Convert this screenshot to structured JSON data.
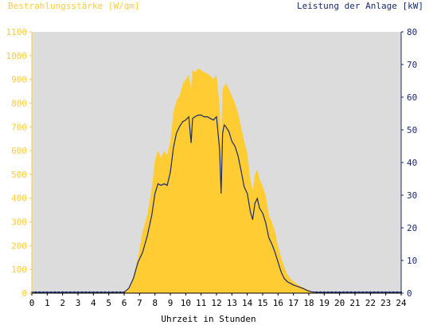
{
  "chart_data": {
    "type": "area",
    "title_left": "Bestrahlungsstärke [W/qm]",
    "title_right": "Leistung der Anlage [kW]",
    "xlabel": "Uhrzeit in Stunden",
    "xlim": [
      0,
      24
    ],
    "ylim_left": [
      0,
      1100
    ],
    "ylim_right": [
      0,
      80
    ],
    "x_ticks": [
      "0",
      "1",
      "2",
      "3",
      "4",
      "5",
      "6",
      "7",
      "8",
      "9",
      "10",
      "11",
      "12",
      "13",
      "14",
      "15",
      "16",
      "17",
      "18",
      "19",
      "20",
      "21",
      "22",
      "23",
      "24"
    ],
    "y_ticks_left": [
      "0",
      "100",
      "200",
      "300",
      "400",
      "500",
      "600",
      "700",
      "800",
      "900",
      "1000",
      "1100"
    ],
    "y_ticks_right": [
      "0",
      "10",
      "20",
      "30",
      "40",
      "50",
      "60",
      "70",
      "80"
    ],
    "grid": false,
    "colors": {
      "irradiance_fill": "#ffcc33",
      "power_line": "#1a2a6c",
      "plot_background": "#dcdcdc"
    },
    "series": [
      {
        "axis": "left",
        "style": "area",
        "x": [
          0,
          6.0,
          6.3,
          6.6,
          6.9,
          7.2,
          7.5,
          7.8,
          8.0,
          8.2,
          8.4,
          8.6,
          8.8,
          9.0,
          9.2,
          9.4,
          9.6,
          9.8,
          10.0,
          10.2,
          10.35,
          10.45,
          10.6,
          10.8,
          11.0,
          11.2,
          11.4,
          11.6,
          11.8,
          12.0,
          12.2,
          12.3,
          12.4,
          12.5,
          12.6,
          12.8,
          13.0,
          13.2,
          13.4,
          13.6,
          13.8,
          14.0,
          14.2,
          14.35,
          14.5,
          14.65,
          14.8,
          15.0,
          15.2,
          15.4,
          15.6,
          15.8,
          16.0,
          16.2,
          16.4,
          16.6,
          16.8,
          17.0,
          17.3,
          17.6,
          17.9,
          18.2,
          18.5,
          24
        ],
        "y": [
          0,
          5,
          20,
          70,
          150,
          260,
          330,
          440,
          560,
          600,
          570,
          600,
          580,
          640,
          760,
          810,
          830,
          880,
          900,
          920,
          860,
          940,
          930,
          945,
          940,
          930,
          925,
          915,
          900,
          920,
          790,
          640,
          860,
          870,
          885,
          860,
          830,
          800,
          760,
          700,
          640,
          590,
          480,
          430,
          500,
          520,
          480,
          450,
          410,
          330,
          300,
          260,
          200,
          150,
          110,
          80,
          60,
          50,
          35,
          25,
          15,
          8,
          2,
          0
        ]
      },
      {
        "axis": "right",
        "style": "line",
        "x": [
          0,
          6.0,
          6.3,
          6.6,
          6.9,
          7.2,
          7.5,
          7.8,
          8.0,
          8.2,
          8.4,
          8.6,
          8.8,
          9.0,
          9.2,
          9.4,
          9.6,
          9.8,
          10.0,
          10.2,
          10.35,
          10.45,
          10.6,
          10.8,
          11.0,
          11.2,
          11.4,
          11.6,
          11.8,
          12.0,
          12.2,
          12.3,
          12.4,
          12.5,
          12.6,
          12.8,
          13.0,
          13.2,
          13.4,
          13.6,
          13.8,
          14.0,
          14.2,
          14.35,
          14.5,
          14.65,
          14.8,
          15.0,
          15.2,
          15.4,
          15.6,
          15.8,
          16.0,
          16.2,
          16.4,
          16.6,
          16.8,
          17.0,
          17.3,
          17.6,
          17.9,
          18.2,
          18.5,
          24
        ],
        "y": [
          0.3,
          0.3,
          1.5,
          4.5,
          9.5,
          12.5,
          17.5,
          24.0,
          30.5,
          33.5,
          33.0,
          33.5,
          33.0,
          37.0,
          44.5,
          49.0,
          51.0,
          52.5,
          53.0,
          54.0,
          46.0,
          53.5,
          54.0,
          54.5,
          54.5,
          54.0,
          54.0,
          53.5,
          53.0,
          54.0,
          44.0,
          30.5,
          49.0,
          51.5,
          51.0,
          49.5,
          46.5,
          45.0,
          42.0,
          37.5,
          32.5,
          30.5,
          25.0,
          22.5,
          27.5,
          29.0,
          26.0,
          24.5,
          21.5,
          17.0,
          15.0,
          12.5,
          9.5,
          6.5,
          4.5,
          3.5,
          3.0,
          2.5,
          2.0,
          1.5,
          0.8,
          0.4,
          0.3,
          0.3
        ]
      }
    ]
  }
}
